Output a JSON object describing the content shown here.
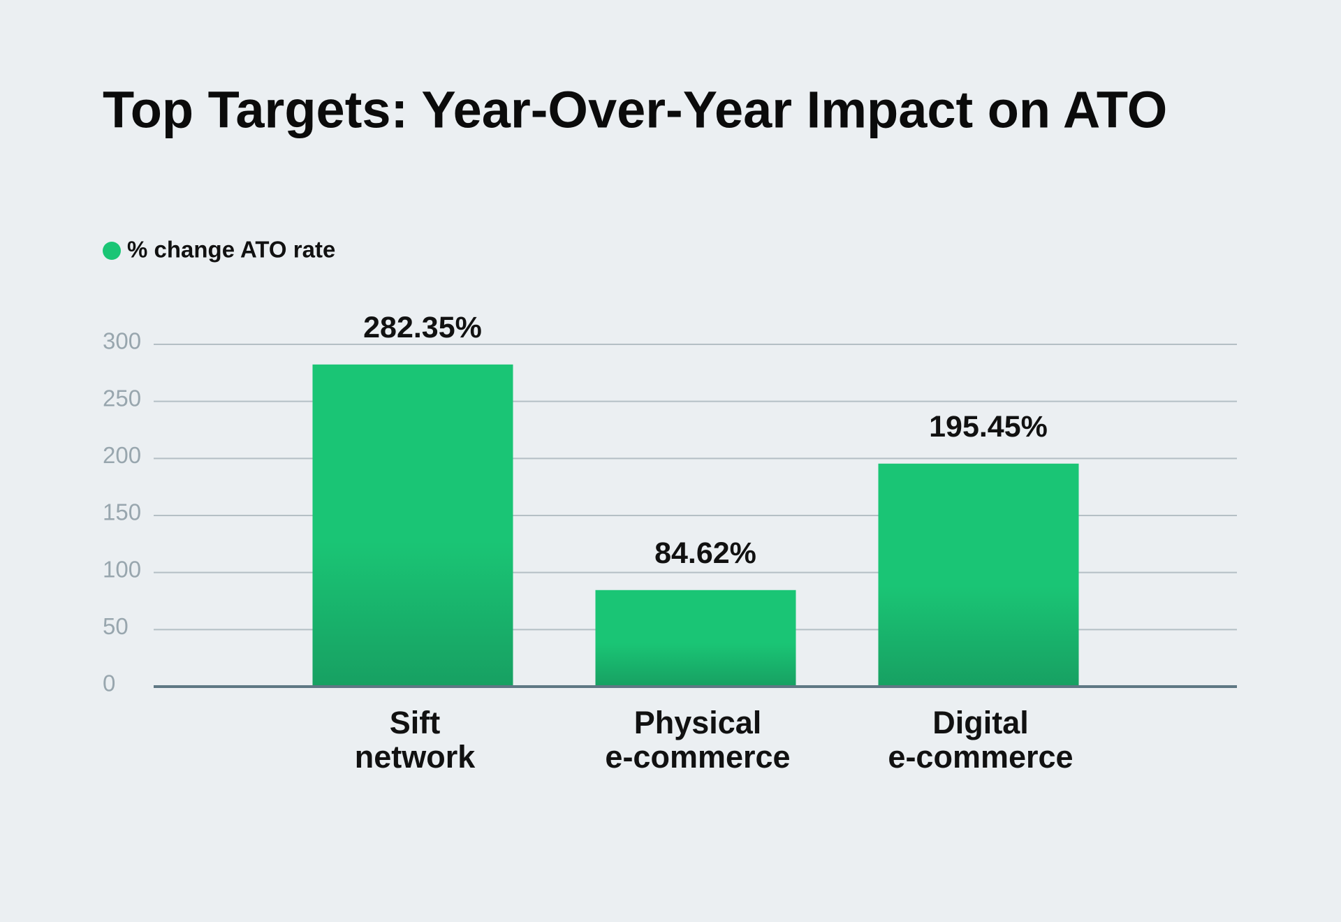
{
  "chart_data": {
    "type": "bar",
    "title": "Top Targets: Year-Over-Year Impact on ATO",
    "categories": [
      [
        "Sift",
        "network"
      ],
      [
        "Physical",
        "e-commerce"
      ],
      [
        "Digital",
        "e-commerce"
      ]
    ],
    "series": [
      {
        "name": "% change ATO rate",
        "color": "#1ac575",
        "values": [
          282.35,
          84.62,
          195.45
        ],
        "value_labels": [
          "282.35%",
          "84.62%",
          "195.45%"
        ]
      }
    ],
    "ylim": [
      0,
      300
    ],
    "yticks": [
      0,
      50,
      100,
      150,
      200,
      250,
      300
    ],
    "grid": true
  }
}
